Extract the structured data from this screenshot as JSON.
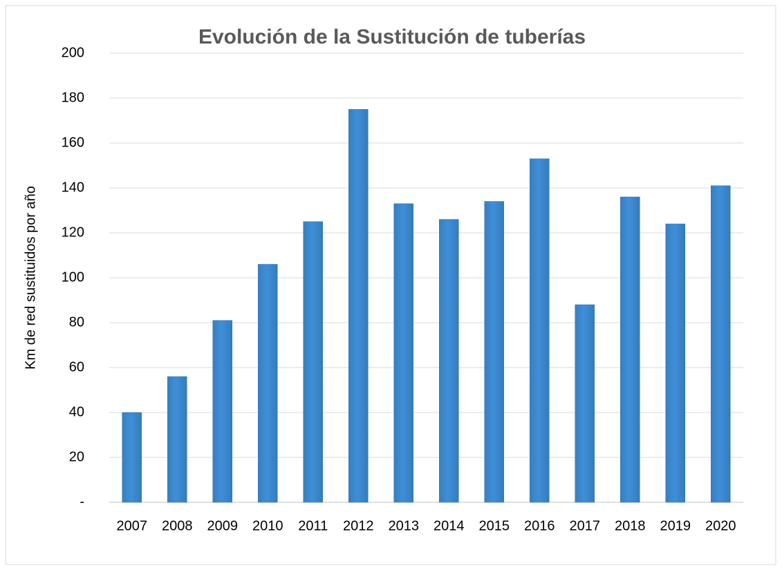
{
  "chart_data": {
    "type": "bar",
    "title": "Evolución de la Sustitución de tuberías",
    "y_label": "Km de red sustituidos por año",
    "categories": [
      "2007",
      "2008",
      "2009",
      "2010",
      "2011",
      "2012",
      "2013",
      "2014",
      "2015",
      "2016",
      "2017",
      "2018",
      "2019",
      "2020"
    ],
    "values": [
      40,
      56,
      81,
      106,
      125,
      175,
      133,
      126,
      134,
      153,
      88,
      136,
      124,
      141
    ],
    "color": "#3f8fd8",
    "ylim": [
      0,
      200
    ],
    "yticks": [
      {
        "value": 0,
        "label": "-"
      },
      20,
      40,
      60,
      80,
      100,
      120,
      140,
      160,
      180,
      200
    ],
    "grid": true
  }
}
